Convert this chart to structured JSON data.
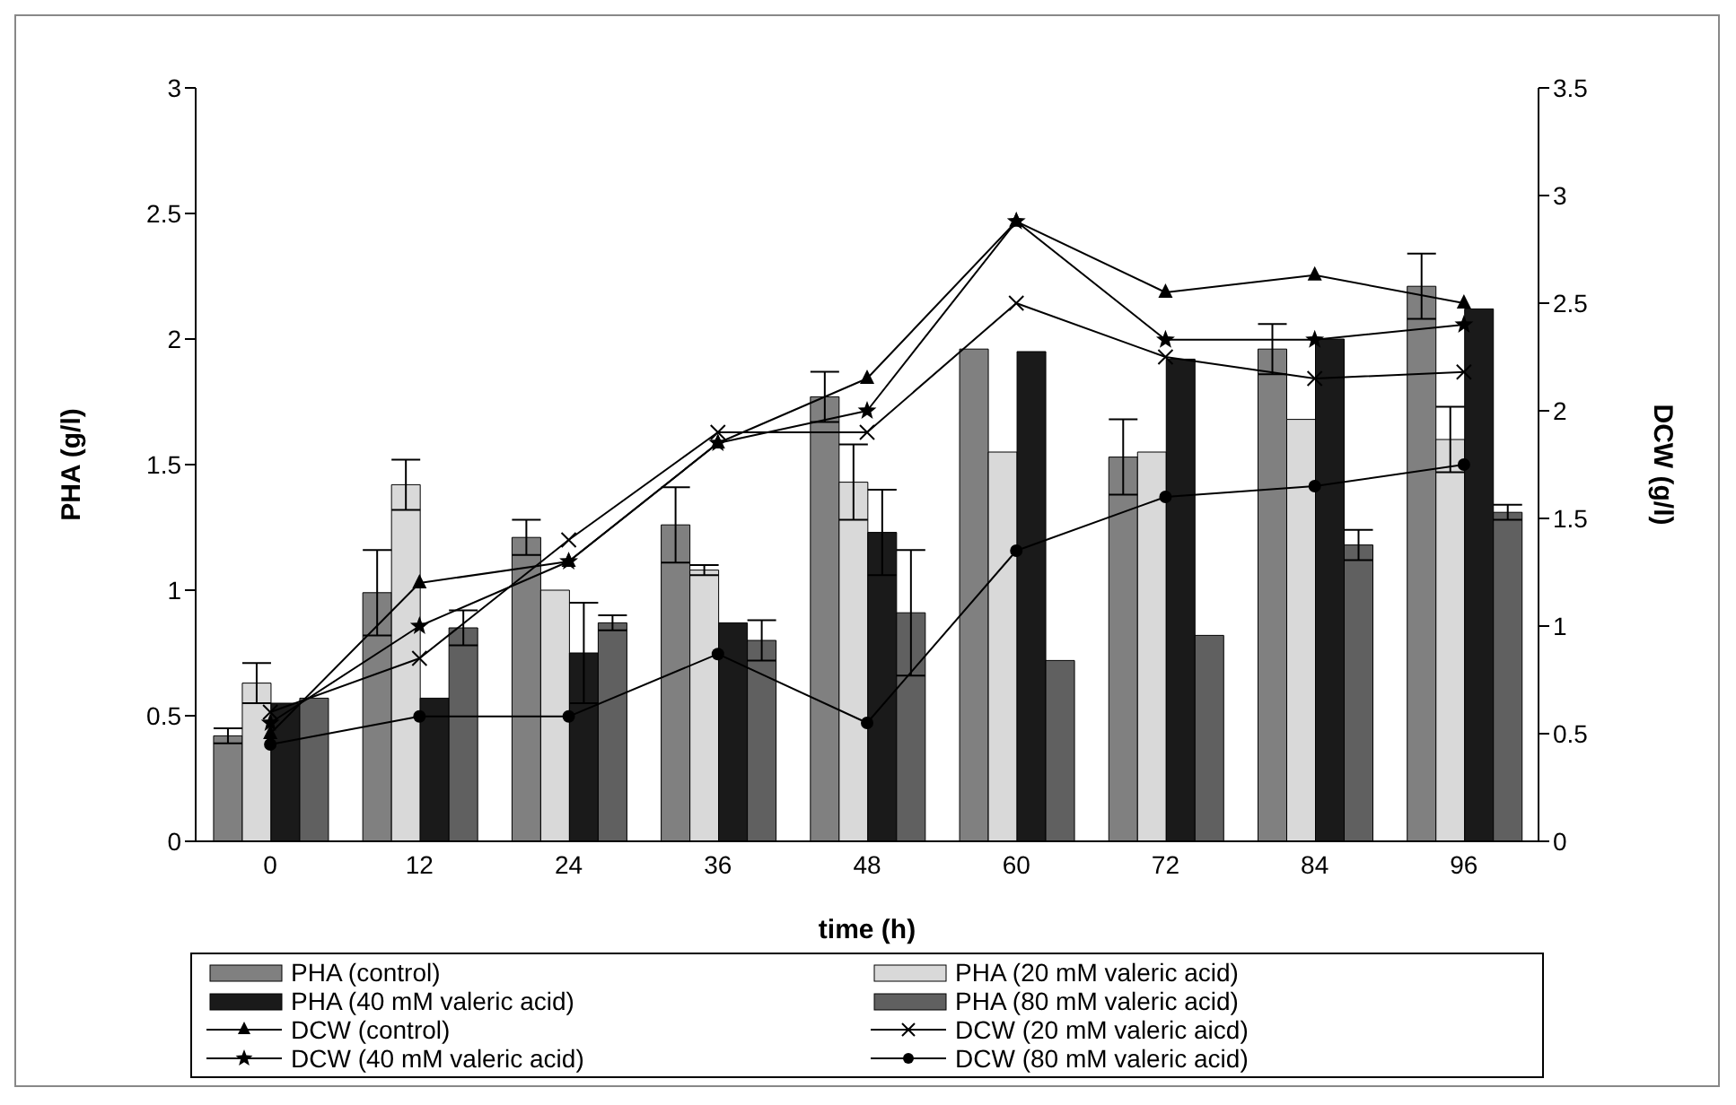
{
  "chart_data": {
    "type": "bar",
    "xlabel": "time (h)",
    "ylabel": "PHA (g/l)",
    "y2label": "DCW (g/l)",
    "categories": [
      "0",
      "12",
      "24",
      "36",
      "48",
      "60",
      "72",
      "84",
      "96"
    ],
    "series": [
      {
        "name": "PHA (control)",
        "color": "#808080",
        "values": [
          0.42,
          0.99,
          1.21,
          1.26,
          1.77,
          1.96,
          1.53,
          1.96,
          2.21
        ],
        "errors": [
          0.03,
          0.17,
          0.07,
          0.15,
          0.1,
          null,
          0.15,
          0.1,
          0.13
        ]
      },
      {
        "name": "PHA (20 mM valeric acid)",
        "color": "#d9d9d9",
        "values": [
          0.63,
          1.42,
          1.0,
          1.08,
          1.43,
          1.55,
          1.55,
          1.68,
          1.6
        ],
        "errors": [
          0.08,
          0.1,
          null,
          0.02,
          0.15,
          null,
          null,
          null,
          0.13
        ]
      },
      {
        "name": "PHA (40 mM valeric acid)",
        "color": "#1a1a1a",
        "values": [
          0.55,
          0.57,
          0.75,
          0.87,
          1.23,
          1.95,
          1.92,
          2.0,
          2.12
        ],
        "errors": [
          null,
          null,
          0.2,
          null,
          0.17,
          null,
          null,
          null,
          null
        ]
      },
      {
        "name": "PHA (80 mM valeric acid)",
        "color": "#606060",
        "values": [
          0.57,
          0.85,
          0.87,
          0.8,
          0.91,
          0.72,
          0.82,
          1.18,
          1.31
        ],
        "errors": [
          null,
          0.07,
          0.03,
          0.08,
          0.25,
          null,
          null,
          0.06,
          0.03
        ]
      },
      {
        "name": "DCW (control)",
        "type": "line",
        "axis": "y2",
        "color": "#000000",
        "marker": "triangle",
        "values": [
          0.5,
          1.2,
          1.3,
          1.85,
          2.15,
          2.88,
          2.55,
          2.63,
          2.5
        ]
      },
      {
        "name": "DCW (20 mM valeric aicd)",
        "type": "line",
        "axis": "y2",
        "color": "#000000",
        "marker": "cross",
        "values": [
          0.6,
          0.85,
          1.4,
          1.9,
          1.9,
          2.5,
          2.25,
          2.15,
          2.18
        ]
      },
      {
        "name": "DCW (40 mM valeric acid)",
        "type": "line",
        "axis": "y2",
        "color": "#000000",
        "marker": "star",
        "values": [
          0.55,
          1.0,
          1.3,
          1.85,
          2.0,
          2.88,
          2.33,
          2.33,
          2.4
        ]
      },
      {
        "name": "DCW (80 mM valeric acid)",
        "type": "line",
        "axis": "y2",
        "color": "#000000",
        "marker": "circle",
        "values": [
          0.45,
          0.58,
          0.58,
          0.87,
          0.55,
          1.35,
          1.6,
          1.65,
          1.75
        ]
      }
    ],
    "ylim": [
      0,
      3
    ],
    "yticks": [
      0,
      0.5,
      1,
      1.5,
      2,
      2.5,
      3
    ],
    "y2lim": [
      0,
      3.5
    ],
    "y2ticks": [
      0,
      0.5,
      1,
      1.5,
      2,
      2.5,
      3,
      3.5
    ],
    "grid": false,
    "legend": "bottom"
  }
}
